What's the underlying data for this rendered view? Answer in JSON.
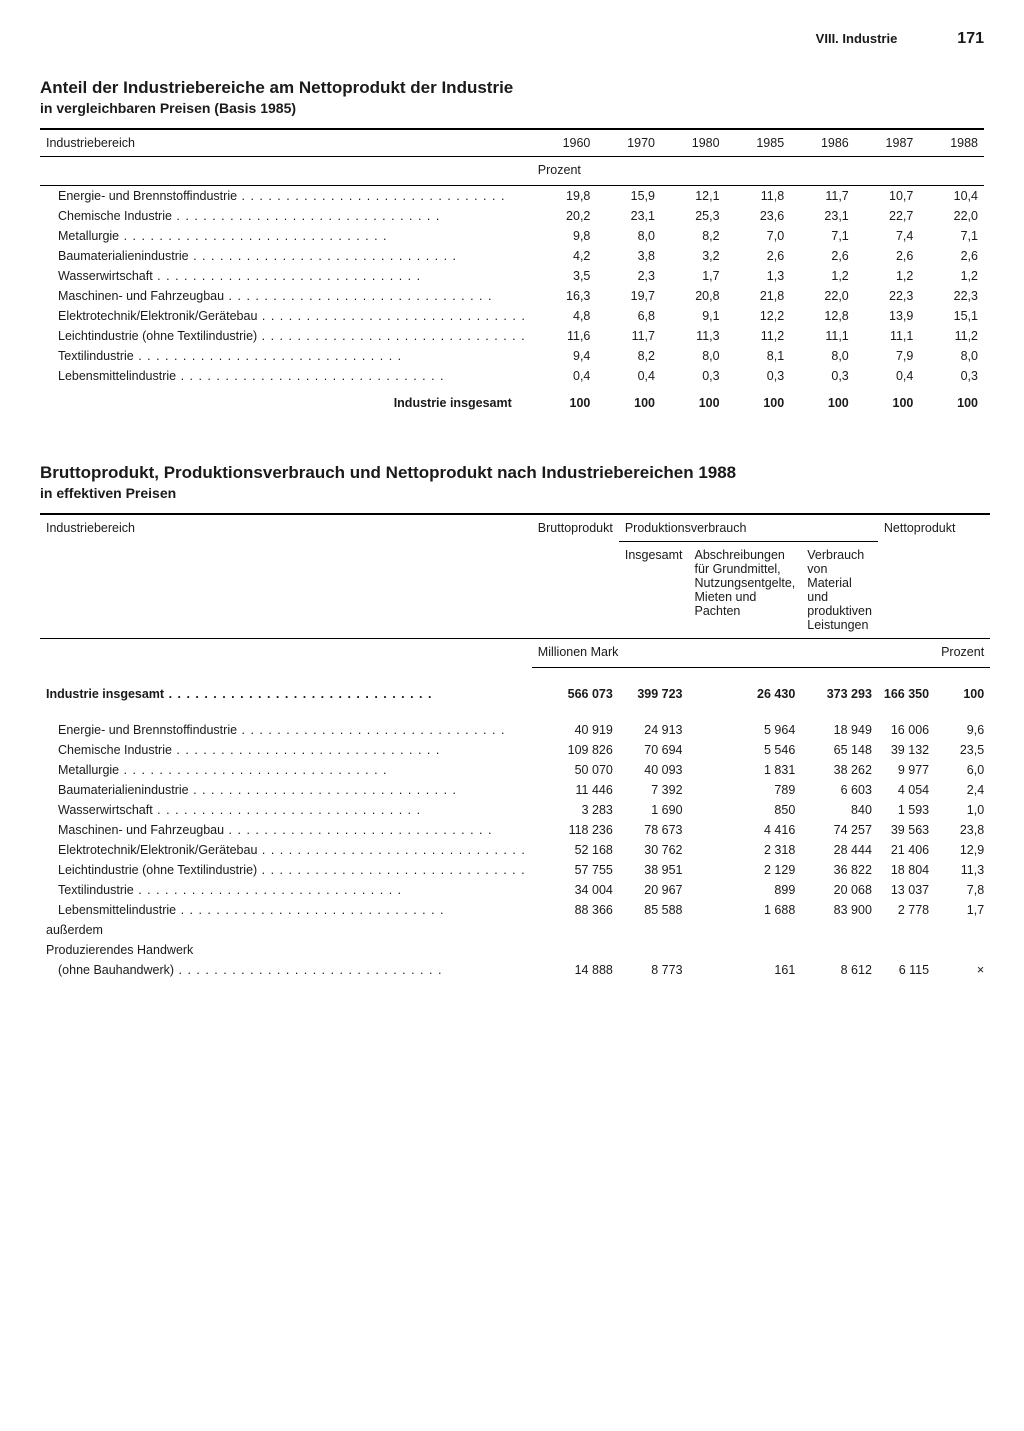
{
  "header": {
    "section": "VIII. Industrie",
    "page": "171"
  },
  "table1": {
    "title": "Anteil der Industriebereiche am Nettoprodukt der Industrie",
    "subtitle": "in vergleichbaren Preisen (Basis 1985)",
    "col_label": "Industriebereich",
    "years": [
      "1960",
      "1970",
      "1980",
      "1985",
      "1986",
      "1987",
      "1988"
    ],
    "unit": "Prozent",
    "rows": [
      {
        "label": "Energie- und Brennstoffindustrie",
        "v": [
          "19,8",
          "15,9",
          "12,1",
          "11,8",
          "11,7",
          "10,7",
          "10,4"
        ]
      },
      {
        "label": "Chemische Industrie",
        "v": [
          "20,2",
          "23,1",
          "25,3",
          "23,6",
          "23,1",
          "22,7",
          "22,0"
        ]
      },
      {
        "label": "Metallurgie",
        "v": [
          "9,8",
          "8,0",
          "8,2",
          "7,0",
          "7,1",
          "7,4",
          "7,1"
        ]
      },
      {
        "label": "Baumaterialienindustrie",
        "v": [
          "4,2",
          "3,8",
          "3,2",
          "2,6",
          "2,6",
          "2,6",
          "2,6"
        ]
      },
      {
        "label": "Wasserwirtschaft",
        "v": [
          "3,5",
          "2,3",
          "1,7",
          "1,3",
          "1,2",
          "1,2",
          "1,2"
        ]
      },
      {
        "label": "Maschinen- und Fahrzeugbau",
        "v": [
          "16,3",
          "19,7",
          "20,8",
          "21,8",
          "22,0",
          "22,3",
          "22,3"
        ]
      },
      {
        "label": "Elektrotechnik/Elektronik/Gerätebau",
        "v": [
          "4,8",
          "6,8",
          "9,1",
          "12,2",
          "12,8",
          "13,9",
          "15,1"
        ]
      },
      {
        "label": "Leichtindustrie (ohne Textilindustrie)",
        "v": [
          "11,6",
          "11,7",
          "11,3",
          "11,2",
          "11,1",
          "11,1",
          "11,2"
        ]
      },
      {
        "label": "Textilindustrie",
        "v": [
          "9,4",
          "8,2",
          "8,0",
          "8,1",
          "8,0",
          "7,9",
          "8,0"
        ]
      },
      {
        "label": "Lebensmittelindustrie",
        "v": [
          "0,4",
          "0,4",
          "0,3",
          "0,3",
          "0,3",
          "0,4",
          "0,3"
        ]
      }
    ],
    "total": {
      "label": "Industrie insgesamt",
      "v": [
        "100",
        "100",
        "100",
        "100",
        "100",
        "100",
        "100"
      ]
    }
  },
  "table2": {
    "title": "Bruttoprodukt, Produktionsverbrauch und Nettoprodukt nach Industriebereichen 1988",
    "subtitle": "in effektiven Preisen",
    "col_label": "Industriebereich",
    "h_brutto": "Bruttoprodukt",
    "h_prodv": "Produktionsverbrauch",
    "h_netto": "Nettoprodukt",
    "h_insg": "Insgesamt",
    "h_absch": "Abschreibungen für Grundmittel, Nutzungsentgelte, Mieten und Pachten",
    "h_verbr": "Verbrauch von Material und produktiven Leistungen",
    "unit_left": "Millionen Mark",
    "unit_right": "Prozent",
    "total": {
      "label": "Industrie insgesamt",
      "v": [
        "566 073",
        "399 723",
        "26 430",
        "373 293",
        "166 350",
        "100"
      ]
    },
    "rows": [
      {
        "label": "Energie- und Brennstoffindustrie",
        "v": [
          "40 919",
          "24 913",
          "5 964",
          "18 949",
          "16 006",
          "9,6"
        ]
      },
      {
        "label": "Chemische Industrie",
        "v": [
          "109 826",
          "70 694",
          "5 546",
          "65 148",
          "39 132",
          "23,5"
        ]
      },
      {
        "label": "Metallurgie",
        "v": [
          "50 070",
          "40 093",
          "1 831",
          "38 262",
          "9 977",
          "6,0"
        ]
      },
      {
        "label": "Baumaterialienindustrie",
        "v": [
          "11 446",
          "7 392",
          "789",
          "6 603",
          "4 054",
          "2,4"
        ]
      },
      {
        "label": "Wasserwirtschaft",
        "v": [
          "3 283",
          "1 690",
          "850",
          "840",
          "1 593",
          "1,0"
        ]
      },
      {
        "label": "Maschinen- und Fahrzeugbau",
        "v": [
          "118 236",
          "78 673",
          "4 416",
          "74 257",
          "39 563",
          "23,8"
        ]
      },
      {
        "label": "Elektrotechnik/Elektronik/Gerätebau",
        "v": [
          "52 168",
          "30 762",
          "2 318",
          "28 444",
          "21 406",
          "12,9"
        ]
      },
      {
        "label": "Leichtindustrie (ohne Textilindustrie)",
        "v": [
          "57 755",
          "38 951",
          "2 129",
          "36 822",
          "18 804",
          "11,3"
        ]
      },
      {
        "label": "Textilindustrie",
        "v": [
          "34 004",
          "20 967",
          "899",
          "20 068",
          "13 037",
          "7,8"
        ]
      },
      {
        "label": "Lebensmittelindustrie",
        "v": [
          "88 366",
          "85 588",
          "1 688",
          "83 900",
          "2 778",
          "1,7"
        ]
      }
    ],
    "extra_label": "außerdem",
    "extra": {
      "label": "Produzierendes Handwerk",
      "sub": "(ohne Bauhandwerk)",
      "v": [
        "14 888",
        "8 773",
        "161",
        "8 612",
        "6 115",
        "×"
      ]
    }
  }
}
